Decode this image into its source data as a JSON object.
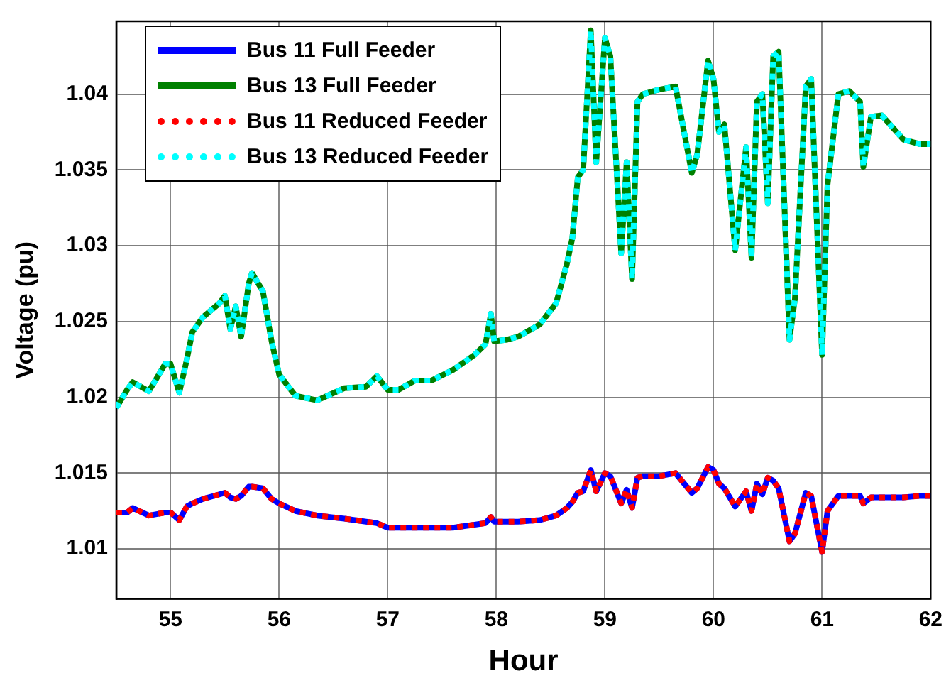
{
  "chart_data": {
    "type": "line",
    "xlabel": "Hour",
    "ylabel": "Voltage (pu)",
    "x": [
      54.5,
      54.6,
      54.65,
      54.8,
      54.95,
      55.0,
      55.08,
      55.15,
      55.2,
      55.3,
      55.45,
      55.5,
      55.55,
      55.6,
      55.65,
      55.72,
      55.75,
      55.85,
      55.93,
      56.0,
      56.15,
      56.35,
      56.6,
      56.8,
      56.9,
      57.0,
      57.1,
      57.25,
      57.4,
      57.6,
      57.8,
      57.9,
      57.95,
      57.98,
      58.1,
      58.2,
      58.4,
      58.55,
      58.65,
      58.7,
      58.75,
      58.8,
      58.87,
      58.92,
      59.0,
      59.05,
      59.15,
      59.2,
      59.25,
      59.3,
      59.35,
      59.5,
      59.65,
      59.8,
      59.85,
      59.95,
      60.0,
      60.05,
      60.1,
      60.2,
      60.3,
      60.35,
      60.4,
      60.45,
      60.5,
      60.55,
      60.6,
      60.7,
      60.75,
      60.85,
      60.9,
      61.0,
      61.05,
      61.15,
      61.25,
      61.35,
      61.38,
      61.45,
      61.55,
      61.65,
      61.75,
      61.9,
      62.0
    ],
    "series": [
      {
        "name": "Bus 11 Full Feeder",
        "color": "#0000ff",
        "line_style": "solid",
        "values": [
          1.0124,
          1.0124,
          1.0127,
          1.0122,
          1.0124,
          1.0124,
          1.0119,
          1.0128,
          1.013,
          1.0133,
          1.0136,
          1.0137,
          1.0134,
          1.0133,
          1.0135,
          1.0141,
          1.0141,
          1.014,
          1.0133,
          1.013,
          1.0125,
          1.0122,
          1.012,
          1.0118,
          1.0117,
          1.0114,
          1.0114,
          1.0114,
          1.0114,
          1.0114,
          1.0116,
          1.0117,
          1.0121,
          1.0118,
          1.0118,
          1.0118,
          1.0119,
          1.0122,
          1.0127,
          1.0131,
          1.0137,
          1.0138,
          1.0152,
          1.0138,
          1.015,
          1.0148,
          1.013,
          1.0139,
          1.0127,
          1.0147,
          1.0148,
          1.0148,
          1.015,
          1.0137,
          1.014,
          1.0154,
          1.0152,
          1.0143,
          1.014,
          1.0128,
          1.0138,
          1.0125,
          1.0143,
          1.0136,
          1.0147,
          1.0145,
          1.014,
          1.0105,
          1.011,
          1.0137,
          1.0135,
          1.0098,
          1.0125,
          1.0135,
          1.0135,
          1.0135,
          1.013,
          1.0134,
          1.0134,
          1.0134,
          1.0134,
          1.0135,
          1.0135
        ]
      },
      {
        "name": "Bus 13 Full Feeder",
        "color": "#008000",
        "line_style": "solid",
        "values": [
          1.0193,
          1.0205,
          1.021,
          1.0204,
          1.0222,
          1.0222,
          1.0203,
          1.0225,
          1.0243,
          1.0253,
          1.0262,
          1.0267,
          1.0245,
          1.026,
          1.024,
          1.0275,
          1.0282,
          1.027,
          1.0237,
          1.0215,
          1.0201,
          1.0198,
          1.0206,
          1.0207,
          1.0214,
          1.0205,
          1.0205,
          1.0211,
          1.0211,
          1.0218,
          1.0228,
          1.0235,
          1.0255,
          1.0237,
          1.0238,
          1.024,
          1.0248,
          1.0262,
          1.0288,
          1.0305,
          1.0345,
          1.035,
          1.0442,
          1.0355,
          1.0437,
          1.0425,
          1.0295,
          1.0355,
          1.0278,
          1.0395,
          1.04,
          1.0403,
          1.0405,
          1.0348,
          1.036,
          1.0422,
          1.041,
          1.0375,
          1.038,
          1.0297,
          1.0365,
          1.0292,
          1.0395,
          1.04,
          1.0328,
          1.0425,
          1.0428,
          1.0238,
          1.0265,
          1.0405,
          1.041,
          1.0228,
          1.034,
          1.04,
          1.0402,
          1.0395,
          1.0352,
          1.0385,
          1.0386,
          1.0378,
          1.037,
          1.0367,
          1.0367
        ]
      },
      {
        "name": "Bus 11 Reduced Feeder",
        "color": "#ff0000",
        "line_style": "dotted",
        "values": [
          1.0124,
          1.0124,
          1.0127,
          1.0122,
          1.0124,
          1.0124,
          1.0119,
          1.0128,
          1.013,
          1.0133,
          1.0136,
          1.0137,
          1.0134,
          1.0133,
          1.0135,
          1.0141,
          1.0141,
          1.014,
          1.0133,
          1.013,
          1.0125,
          1.0122,
          1.012,
          1.0118,
          1.0117,
          1.0114,
          1.0114,
          1.0114,
          1.0114,
          1.0114,
          1.0116,
          1.0117,
          1.0121,
          1.0118,
          1.0118,
          1.0118,
          1.0119,
          1.0122,
          1.0127,
          1.0131,
          1.0137,
          1.0138,
          1.0152,
          1.0138,
          1.015,
          1.0148,
          1.013,
          1.0139,
          1.0127,
          1.0147,
          1.0148,
          1.0148,
          1.015,
          1.0137,
          1.014,
          1.0154,
          1.0152,
          1.0143,
          1.014,
          1.0128,
          1.0138,
          1.0125,
          1.0143,
          1.0136,
          1.0147,
          1.0145,
          1.014,
          1.0105,
          1.011,
          1.0137,
          1.0135,
          1.0098,
          1.0125,
          1.0135,
          1.0135,
          1.0135,
          1.013,
          1.0134,
          1.0134,
          1.0134,
          1.0134,
          1.0135,
          1.0135
        ]
      },
      {
        "name": "Bus 13 Reduced Feeder",
        "color": "#00ffff",
        "line_style": "dotted",
        "values": [
          1.0193,
          1.0205,
          1.021,
          1.0204,
          1.0222,
          1.0222,
          1.0203,
          1.0225,
          1.0243,
          1.0253,
          1.0262,
          1.0267,
          1.0245,
          1.026,
          1.024,
          1.0275,
          1.0282,
          1.027,
          1.0237,
          1.0215,
          1.0201,
          1.0198,
          1.0206,
          1.0207,
          1.0214,
          1.0205,
          1.0205,
          1.0211,
          1.0211,
          1.0218,
          1.0228,
          1.0235,
          1.0255,
          1.0237,
          1.0238,
          1.024,
          1.0248,
          1.0262,
          1.0288,
          1.0305,
          1.0345,
          1.035,
          1.0442,
          1.0355,
          1.0437,
          1.0425,
          1.0295,
          1.0355,
          1.0278,
          1.0395,
          1.04,
          1.0403,
          1.0405,
          1.0348,
          1.036,
          1.0422,
          1.041,
          1.0375,
          1.038,
          1.0297,
          1.0365,
          1.0292,
          1.0395,
          1.04,
          1.0328,
          1.0425,
          1.0428,
          1.0238,
          1.0265,
          1.0405,
          1.041,
          1.0228,
          1.034,
          1.04,
          1.0402,
          1.0395,
          1.0352,
          1.0385,
          1.0386,
          1.0378,
          1.037,
          1.0367,
          1.0367
        ]
      }
    ],
    "xlim": [
      54.5,
      62
    ],
    "xticks": [
      55,
      56,
      57,
      58,
      59,
      60,
      61,
      62
    ],
    "ylim": [
      1.0067,
      1.0448
    ],
    "yticks": [
      1.01,
      1.015,
      1.02,
      1.025,
      1.03,
      1.035,
      1.04
    ],
    "grid": true,
    "legend": "top left",
    "marker": "none"
  }
}
